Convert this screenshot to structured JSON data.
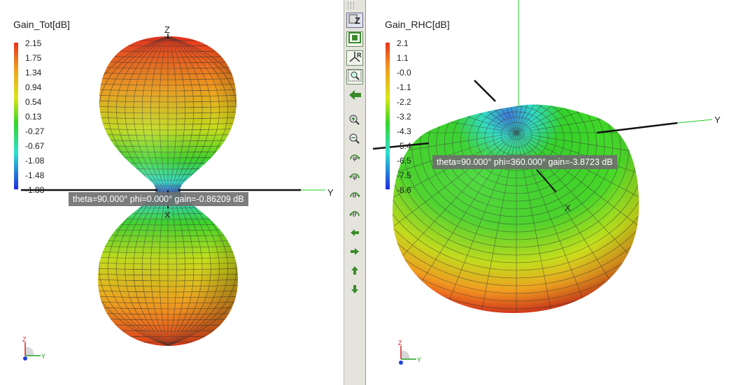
{
  "left_view": {
    "legend_title": "Gain_Tot[dB]",
    "legend_values": [
      "2.15",
      "1.75",
      "1.34",
      "0.94",
      "0.54",
      "0.13",
      "-0.27",
      "-0.67",
      "-1.08",
      "-1.48",
      "-1.88"
    ],
    "tooltip": "theta=90.000° phi=0.000° gain=-0.86209 dB",
    "axes": {
      "z": "Z",
      "y": "Y",
      "x": "X"
    },
    "triad": {
      "z": "Z",
      "y": "Y"
    }
  },
  "right_view": {
    "legend_title": "Gain_RHC[dB]",
    "legend_values": [
      "2.1",
      "1.1",
      "-0.0",
      "-1.1",
      "-2.2",
      "-3.2",
      "-4.3",
      "-5.4",
      "-6.5",
      "-7.5",
      "-8.6"
    ],
    "tooltip": "theta=90.000° phi=360.000° gain=-3.8723 dB",
    "axes": {
      "y": "Y",
      "x": "X"
    },
    "triad": {
      "z": "Z",
      "y": "Y"
    }
  },
  "toolbar": {
    "tools": [
      {
        "name": "view-z-icon",
        "label": "Z"
      },
      {
        "name": "fit-view-icon",
        "label": ""
      },
      {
        "name": "view-r-icon",
        "label": "R"
      },
      {
        "name": "zoom-region-icon",
        "label": ""
      },
      {
        "name": "back-arrow-icon",
        "label": ""
      },
      {
        "name": "zoom-in-icon",
        "label": ""
      },
      {
        "name": "zoom-out-icon",
        "label": ""
      },
      {
        "name": "rotate-phi-ccw-icon",
        "label": "φ"
      },
      {
        "name": "rotate-phi-cw-icon",
        "label": "φ"
      },
      {
        "name": "rotate-theta-ccw-icon",
        "label": "θ"
      },
      {
        "name": "rotate-theta-cw-icon",
        "label": "θ"
      },
      {
        "name": "pan-left-icon",
        "label": ""
      },
      {
        "name": "pan-right-icon",
        "label": ""
      },
      {
        "name": "pan-up-icon",
        "label": ""
      },
      {
        "name": "pan-down-icon",
        "label": ""
      }
    ]
  },
  "colors": {
    "red": "#e8321e",
    "orange": "#f0a020",
    "yellow": "#d8e61a",
    "green": "#34d62a",
    "cyan": "#2ee0d0",
    "blue": "#1e2ee0",
    "mesh": "#333333",
    "axis_green": "#22cc22",
    "tool_green": "#3a8a2a"
  }
}
